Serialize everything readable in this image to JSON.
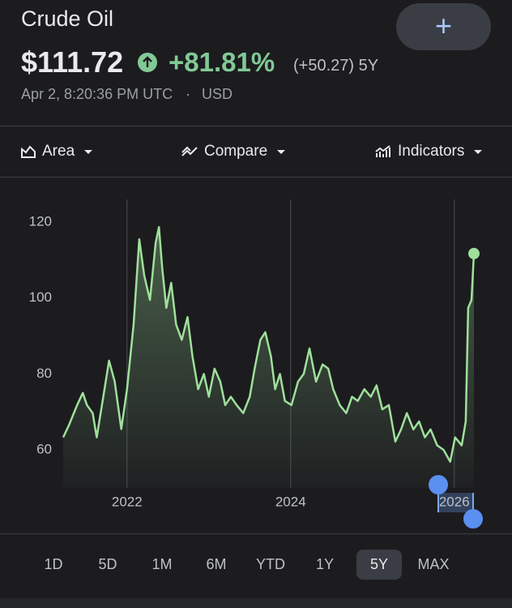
{
  "header": {
    "title": "Crude Oil",
    "price": "$111.72",
    "change_percent": "+81.81%",
    "change_abs": "(+50.27) 5Y",
    "timestamp": "Apr 2, 8:20:36 PM UTC",
    "separator": "·",
    "currency": "USD"
  },
  "toolbar": {
    "area": "Area",
    "compare": "Compare",
    "indicators": "Indicators"
  },
  "chart_data": {
    "type": "line",
    "x": [
      2021.22,
      2021.29,
      2021.39,
      2021.46,
      2021.51,
      2021.58,
      2021.63,
      2021.71,
      2021.78,
      2021.85,
      2021.93,
      2022.0,
      2022.08,
      2022.15,
      2022.21,
      2022.28,
      2022.35,
      2022.39,
      2022.43,
      2022.48,
      2022.54,
      2022.6,
      2022.67,
      2022.74,
      2022.8,
      2022.87,
      2022.94,
      2023.0,
      2023.07,
      2023.14,
      2023.2,
      2023.27,
      2023.34,
      2023.42,
      2023.5,
      2023.56,
      2023.63,
      2023.69,
      2023.76,
      2023.81,
      2023.87,
      2023.93,
      2024.01,
      2024.09,
      2024.16,
      2024.23,
      2024.31,
      2024.39,
      2024.46,
      2024.52,
      2024.6,
      2024.68,
      2024.75,
      2024.82,
      2024.9,
      2024.98,
      2025.05,
      2025.12,
      2025.2,
      2025.28,
      2025.35,
      2025.42,
      2025.5,
      2025.57,
      2025.64,
      2025.71,
      2025.79,
      2025.87,
      2025.95,
      2026.01,
      2026.09,
      2026.14,
      2026.17,
      2026.21,
      2026.24
    ],
    "series": [
      {
        "name": "Crude Oil",
        "color": "#9fe09b",
        "values": [
          63.3,
          66.5,
          71.8,
          75,
          71.8,
          69.7,
          63.3,
          74,
          83.5,
          78,
          65.5,
          76,
          93,
          115.5,
          106,
          99.5,
          114.5,
          118.7,
          108,
          97.4,
          104,
          93,
          89,
          95,
          84.6,
          76,
          80,
          74,
          81.4,
          78,
          71.8,
          74,
          71.8,
          69.7,
          74,
          81.4,
          89,
          91,
          84.6,
          76,
          80,
          72.9,
          71.8,
          78,
          80,
          86.7,
          78,
          82.5,
          81.4,
          76,
          71.8,
          69.7,
          74,
          72.9,
          76,
          74,
          77,
          70.7,
          71.8,
          62.2,
          65.4,
          69.7,
          65.4,
          67.5,
          63.3,
          65.4,
          61.2,
          60,
          56.9,
          63.3,
          61.2,
          67.5,
          97.4,
          99.5,
          111.72
        ]
      }
    ],
    "xlim": [
      2021.22,
      2026.24
    ],
    "xticks": [
      2022,
      2024,
      2026
    ],
    "ylim": [
      50,
      125
    ],
    "yticks": [
      60,
      80,
      100,
      120
    ]
  },
  "ranges": [
    "1D",
    "5D",
    "1M",
    "6M",
    "YTD",
    "1Y",
    "5Y",
    "MAX"
  ]
}
